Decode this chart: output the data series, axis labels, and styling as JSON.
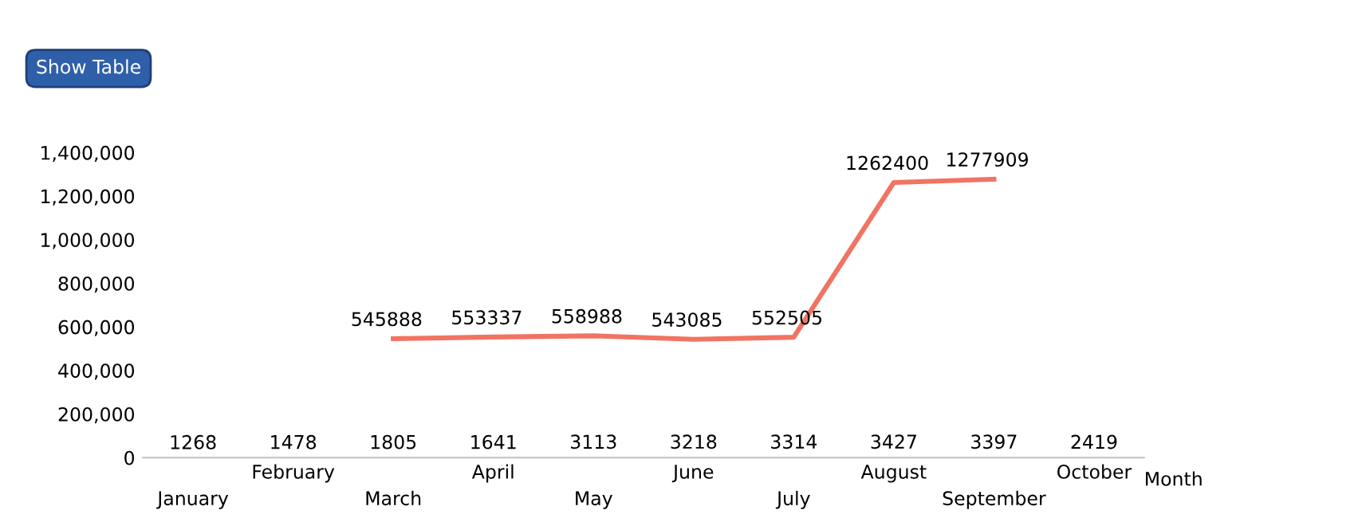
{
  "chart_data": {
    "type": "bar",
    "categories": [
      "January",
      "February",
      "March",
      "April",
      "May",
      "June",
      "July",
      "August",
      "September",
      "October"
    ],
    "series": [
      {
        "color": "#9bb3d8",
        "values": [
          1268,
          1478,
          1805,
          1641,
          3113,
          3218,
          3314,
          3427,
          3397,
          2419
        ]
      },
      {
        "type": "line",
        "color": "#f07462",
        "values": [
          null,
          null,
          545888,
          553337,
          558988,
          543085,
          552505,
          1262400,
          1277909,
          null
        ]
      }
    ],
    "xlabel": "Month",
    "ylim": [
      0,
      1400000
    ],
    "yticks": [
      {
        "value": 0,
        "label": "0"
      },
      {
        "value": 200000,
        "label": "200,000"
      },
      {
        "value": 400000,
        "label": "400,000"
      },
      {
        "value": 600000,
        "label": "600,000"
      },
      {
        "value": 800000,
        "label": "800,000"
      },
      {
        "value": 1000000,
        "label": "1,000,000"
      },
      {
        "value": 1200000,
        "label": "1,200,000"
      },
      {
        "value": 1400000,
        "label": "1,400,000"
      }
    ],
    "data_labels": true,
    "grid": false,
    "annotations": [
      "Show Table"
    ]
  }
}
